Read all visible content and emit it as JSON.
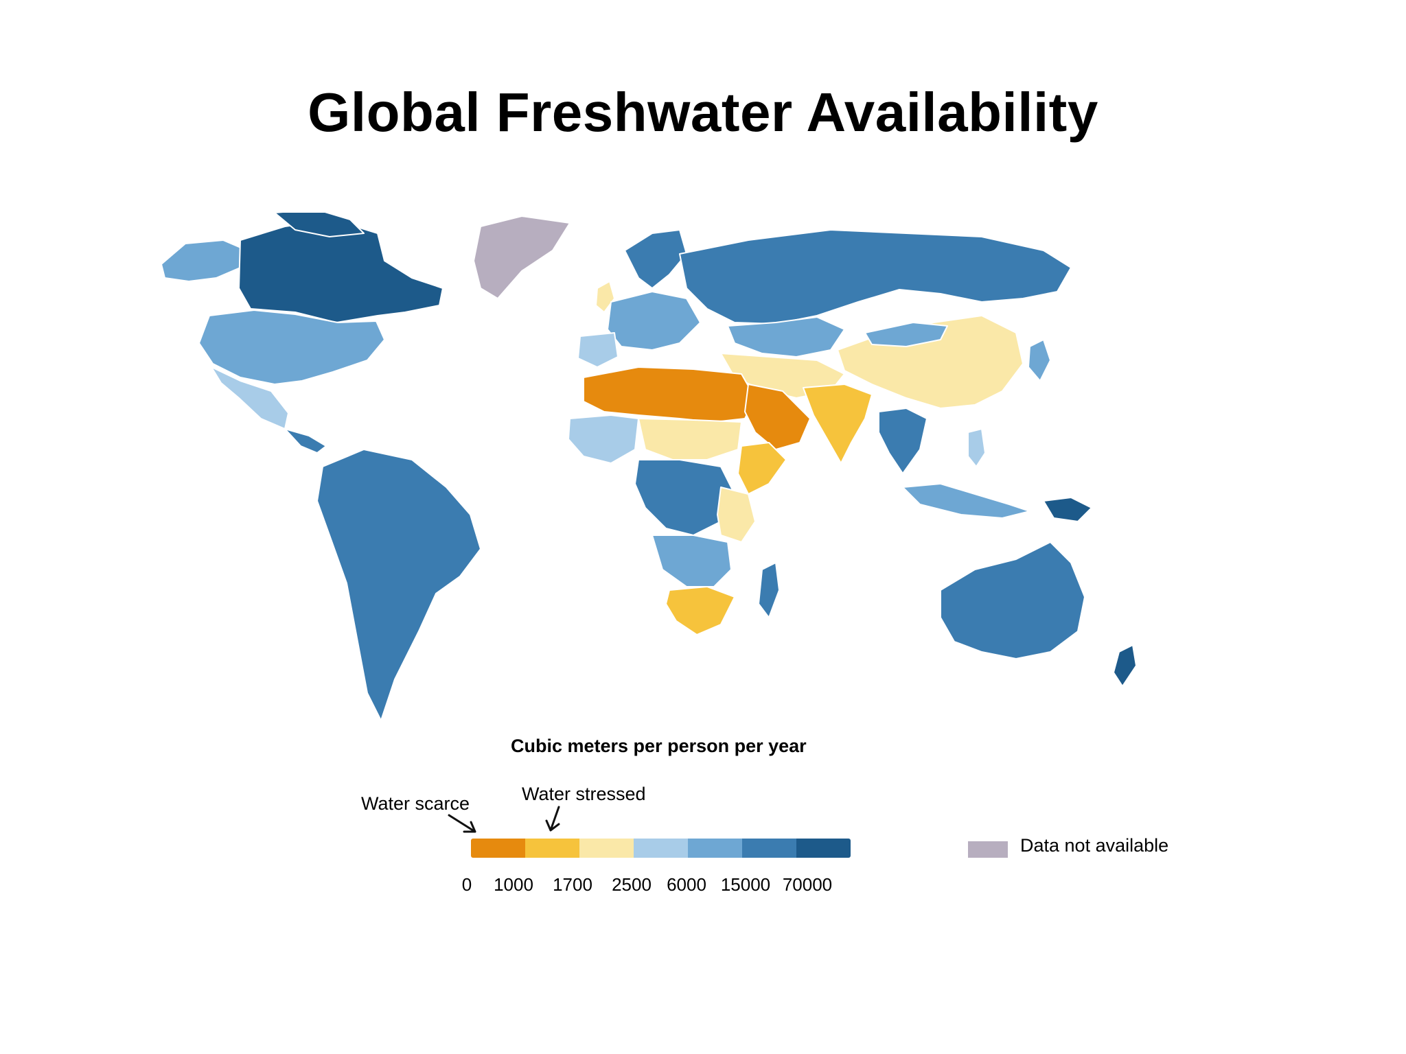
{
  "title": "Global Freshwater Availability",
  "legend": {
    "title": "Cubic meters per person per year",
    "water_scarce_label": "Water scarce",
    "water_stressed_label": "Water stressed",
    "classes": [
      {
        "color": "#e68a0e"
      },
      {
        "color": "#f6c33c"
      },
      {
        "color": "#fae8a8"
      },
      {
        "color": "#a8cce8"
      },
      {
        "color": "#6ea7d3"
      },
      {
        "color": "#3b7cb0"
      },
      {
        "color": "#1d5a8a"
      }
    ],
    "ticks": [
      "0",
      "1000",
      "1700",
      "2500",
      "6000",
      "15000",
      "70000"
    ],
    "no_data_label": "Data not available",
    "no_data_color": "#b7aebf"
  },
  "map_colors": {
    "border": "#ffffff",
    "greenland": "#b7aebf"
  }
}
